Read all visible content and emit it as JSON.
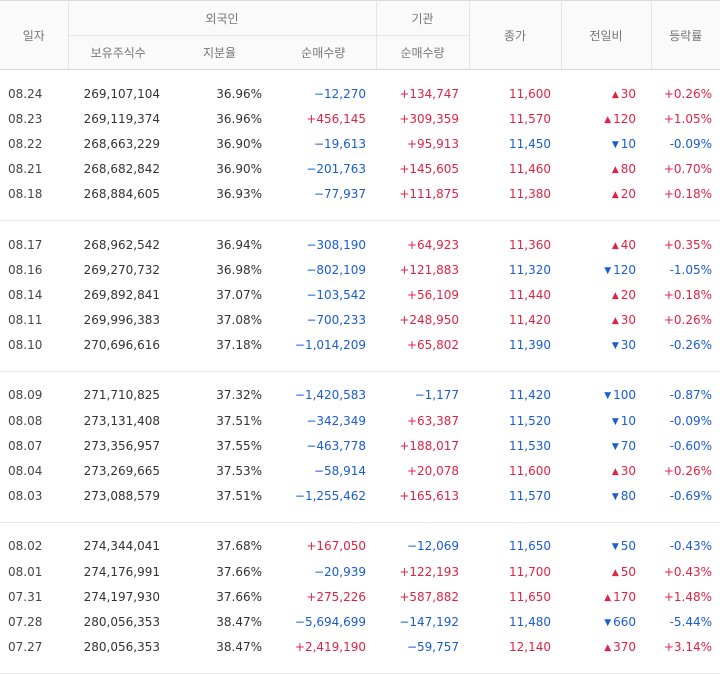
{
  "header": {
    "date": "일자",
    "foreign": "외국인",
    "institution": "기관",
    "close": "종가",
    "change": "전일비",
    "rate": "등락률",
    "holdings": "보유주식수",
    "ratio": "지분율",
    "foreign_net": "순매수량",
    "inst_net": "순매수량"
  },
  "colors": {
    "up": "#e12343",
    "down": "#1a5bd6"
  },
  "groups": [
    [
      {
        "date": "08.24",
        "holdings": "269,107,104",
        "ratio": "36.96%",
        "fnet": "−12,270",
        "inet": "+134,747",
        "close": "11,600",
        "dir": "up",
        "chg": "30",
        "rate": "+0.26%"
      },
      {
        "date": "08.23",
        "holdings": "269,119,374",
        "ratio": "36.96%",
        "fnet": "+456,145",
        "inet": "+309,359",
        "close": "11,570",
        "dir": "up",
        "chg": "120",
        "rate": "+1.05%"
      },
      {
        "date": "08.22",
        "holdings": "268,663,229",
        "ratio": "36.90%",
        "fnet": "−19,613",
        "inet": "+95,913",
        "close": "11,450",
        "dir": "down",
        "chg": "10",
        "rate": "-0.09%"
      },
      {
        "date": "08.21",
        "holdings": "268,682,842",
        "ratio": "36.90%",
        "fnet": "−201,763",
        "inet": "+145,605",
        "close": "11,460",
        "dir": "up",
        "chg": "80",
        "rate": "+0.70%"
      },
      {
        "date": "08.18",
        "holdings": "268,884,605",
        "ratio": "36.93%",
        "fnet": "−77,937",
        "inet": "+111,875",
        "close": "11,380",
        "dir": "up",
        "chg": "20",
        "rate": "+0.18%"
      }
    ],
    [
      {
        "date": "08.17",
        "holdings": "268,962,542",
        "ratio": "36.94%",
        "fnet": "−308,190",
        "inet": "+64,923",
        "close": "11,360",
        "dir": "up",
        "chg": "40",
        "rate": "+0.35%"
      },
      {
        "date": "08.16",
        "holdings": "269,270,732",
        "ratio": "36.98%",
        "fnet": "−802,109",
        "inet": "+121,883",
        "close": "11,320",
        "dir": "down",
        "chg": "120",
        "rate": "-1.05%"
      },
      {
        "date": "08.14",
        "holdings": "269,892,841",
        "ratio": "37.07%",
        "fnet": "−103,542",
        "inet": "+56,109",
        "close": "11,440",
        "dir": "up",
        "chg": "20",
        "rate": "+0.18%"
      },
      {
        "date": "08.11",
        "holdings": "269,996,383",
        "ratio": "37.08%",
        "fnet": "−700,233",
        "inet": "+248,950",
        "close": "11,420",
        "dir": "up",
        "chg": "30",
        "rate": "+0.26%"
      },
      {
        "date": "08.10",
        "holdings": "270,696,616",
        "ratio": "37.18%",
        "fnet": "−1,014,209",
        "inet": "+65,802",
        "close": "11,390",
        "dir": "down",
        "chg": "30",
        "rate": "-0.26%"
      }
    ],
    [
      {
        "date": "08.09",
        "holdings": "271,710,825",
        "ratio": "37.32%",
        "fnet": "−1,420,583",
        "inet": "−1,177",
        "close": "11,420",
        "dir": "down",
        "chg": "100",
        "rate": "-0.87%"
      },
      {
        "date": "08.08",
        "holdings": "273,131,408",
        "ratio": "37.51%",
        "fnet": "−342,349",
        "inet": "+63,387",
        "close": "11,520",
        "dir": "down",
        "chg": "10",
        "rate": "-0.09%"
      },
      {
        "date": "08.07",
        "holdings": "273,356,957",
        "ratio": "37.55%",
        "fnet": "−463,778",
        "inet": "+188,017",
        "close": "11,530",
        "dir": "down",
        "chg": "70",
        "rate": "-0.60%"
      },
      {
        "date": "08.04",
        "holdings": "273,269,665",
        "ratio": "37.53%",
        "fnet": "−58,914",
        "inet": "+20,078",
        "close": "11,600",
        "dir": "up",
        "chg": "30",
        "rate": "+0.26%"
      },
      {
        "date": "08.03",
        "holdings": "273,088,579",
        "ratio": "37.51%",
        "fnet": "−1,255,462",
        "inet": "+165,613",
        "close": "11,570",
        "dir": "down",
        "chg": "80",
        "rate": "-0.69%"
      }
    ],
    [
      {
        "date": "08.02",
        "holdings": "274,344,041",
        "ratio": "37.68%",
        "fnet": "+167,050",
        "inet": "−12,069",
        "close": "11,650",
        "dir": "down",
        "chg": "50",
        "rate": "-0.43%"
      },
      {
        "date": "08.01",
        "holdings": "274,176,991",
        "ratio": "37.66%",
        "fnet": "−20,939",
        "inet": "+122,193",
        "close": "11,700",
        "dir": "up",
        "chg": "50",
        "rate": "+0.43%"
      },
      {
        "date": "07.31",
        "holdings": "274,197,930",
        "ratio": "37.66%",
        "fnet": "+275,226",
        "inet": "+587,882",
        "close": "11,650",
        "dir": "up",
        "chg": "170",
        "rate": "+1.48%"
      },
      {
        "date": "07.28",
        "holdings": "280,056,353",
        "ratio": "38.47%",
        "fnet": "−5,694,699",
        "inet": "−147,192",
        "close": "11,480",
        "dir": "down",
        "chg": "660",
        "rate": "-5.44%"
      },
      {
        "date": "07.27",
        "holdings": "280,056,353",
        "ratio": "38.47%",
        "fnet": "+2,419,190",
        "inet": "−59,757",
        "close": "12,140",
        "dir": "up",
        "chg": "370",
        "rate": "+3.14%"
      }
    ]
  ]
}
